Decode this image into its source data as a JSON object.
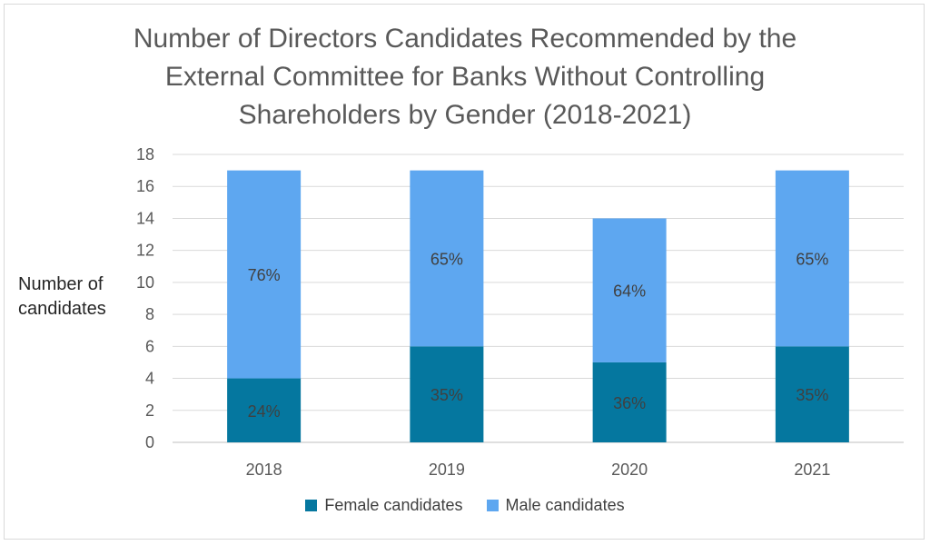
{
  "chart_data": {
    "type": "bar",
    "stacked": true,
    "title_lines": [
      "Number of Directors Candidates Recommended by the",
      "External Committee for Banks Without Controlling",
      "Shareholders by Gender (2018-2021)"
    ],
    "xlabel": "",
    "ylabel_lines": [
      "Number of",
      "candidates"
    ],
    "categories": [
      "2018",
      "2019",
      "2020",
      "2021"
    ],
    "series": [
      {
        "name": "Female candidates",
        "color": "#05779f",
        "values": [
          4,
          6,
          5,
          6
        ],
        "labels": [
          "24%",
          "35%",
          "36%",
          "35%"
        ]
      },
      {
        "name": "Male candidates",
        "color": "#5ea7f0",
        "values": [
          13,
          11,
          9,
          11
        ],
        "labels": [
          "76%",
          "65%",
          "64%",
          "65%"
        ]
      }
    ],
    "ylim": [
      0,
      18
    ],
    "yticks": [
      0,
      2,
      4,
      6,
      8,
      10,
      12,
      14,
      16,
      18
    ],
    "grid": true,
    "legend_position": "bottom"
  }
}
